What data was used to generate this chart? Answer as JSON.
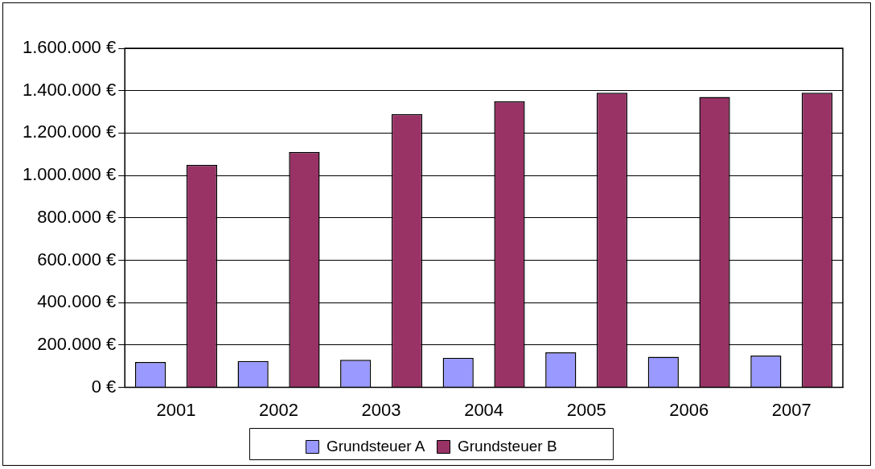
{
  "chart_data": {
    "type": "bar",
    "categories": [
      "2001",
      "2002",
      "2003",
      "2004",
      "2005",
      "2006",
      "2007"
    ],
    "series": [
      {
        "name": "Grundsteuer A",
        "color": "#9999ff",
        "values": [
          120000,
          125000,
          130000,
          140000,
          165000,
          145000,
          150000
        ]
      },
      {
        "name": "Grundsteuer B",
        "color": "#993366",
        "values": [
          1050000,
          1110000,
          1290000,
          1350000,
          1390000,
          1370000,
          1390000
        ]
      }
    ],
    "ylim": [
      0,
      1600000
    ],
    "yticks": [
      {
        "value": 0,
        "label": "0 €"
      },
      {
        "value": 200000,
        "label": "200.000 €"
      },
      {
        "value": 400000,
        "label": "400.000 €"
      },
      {
        "value": 600000,
        "label": "600.000 €"
      },
      {
        "value": 800000,
        "label": "800.000 €"
      },
      {
        "value": 1000000,
        "label": "1.000.000 €"
      },
      {
        "value": 1200000,
        "label": "1.200.000 €"
      },
      {
        "value": 1400000,
        "label": "1.400.000 €"
      },
      {
        "value": 1600000,
        "label": "1.600.000 €"
      }
    ],
    "grid": "y",
    "legend": "bottom"
  }
}
